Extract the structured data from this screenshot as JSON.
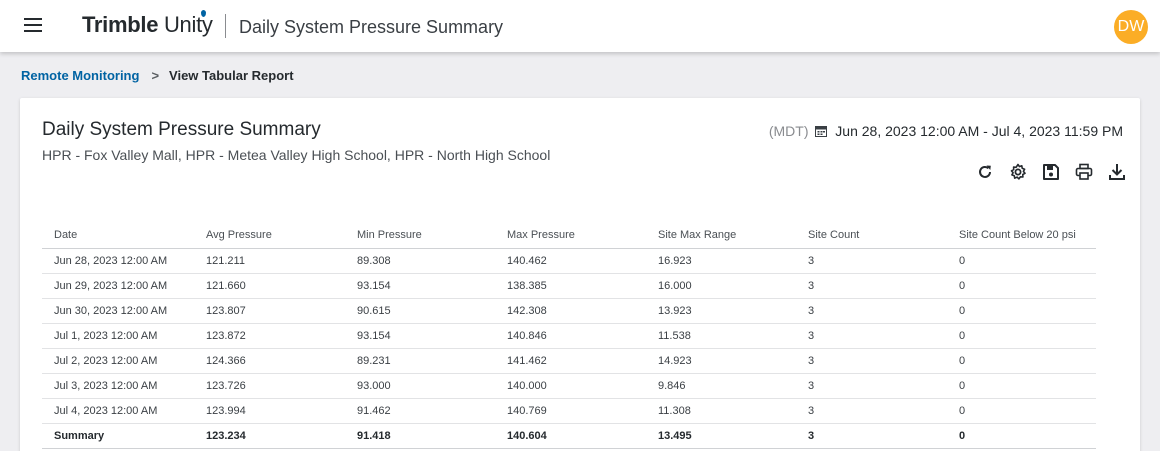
{
  "header": {
    "brand_bold": "Trimble",
    "brand_light": "Unity",
    "app_title": "Daily System Pressure Summary",
    "avatar_initials": "DW",
    "avatar_color": "#fbad26"
  },
  "breadcrumb": {
    "parent": "Remote Monitoring",
    "separator": ">",
    "current": "View Tabular Report"
  },
  "report": {
    "title": "Daily System Pressure Summary",
    "sites": "HPR - Fox Valley Mall, HPR - Metea Valley High School, HPR - North High School",
    "timezone": "(MDT)",
    "date_range": "Jun 28, 2023 12:00 AM - Jul 4, 2023 11:59 PM",
    "toolbar_icons": [
      "refresh-icon",
      "settings-icon",
      "save-icon",
      "print-icon",
      "download-icon"
    ]
  },
  "table": {
    "columns": [
      "Date",
      "Avg Pressure",
      "Min Pressure",
      "Max Pressure",
      "Site Max Range",
      "Site Count",
      "Site Count Below 20 psi"
    ],
    "rows": [
      [
        "Jun 28, 2023 12:00 AM",
        "121.211",
        "89.308",
        "140.462",
        "16.923",
        "3",
        "0"
      ],
      [
        "Jun 29, 2023 12:00 AM",
        "121.660",
        "93.154",
        "138.385",
        "16.000",
        "3",
        "0"
      ],
      [
        "Jun 30, 2023 12:00 AM",
        "123.807",
        "90.615",
        "142.308",
        "13.923",
        "3",
        "0"
      ],
      [
        "Jul 1, 2023 12:00 AM",
        "123.872",
        "93.154",
        "140.846",
        "11.538",
        "3",
        "0"
      ],
      [
        "Jul 2, 2023 12:00 AM",
        "124.366",
        "89.231",
        "141.462",
        "14.923",
        "3",
        "0"
      ],
      [
        "Jul 3, 2023 12:00 AM",
        "123.726",
        "93.000",
        "140.000",
        "9.846",
        "3",
        "0"
      ],
      [
        "Jul 4, 2023 12:00 AM",
        "123.994",
        "91.462",
        "140.769",
        "11.308",
        "3",
        "0"
      ]
    ],
    "summary": [
      "Summary",
      "123.234",
      "91.418",
      "140.604",
      "13.495",
      "3",
      "0"
    ]
  },
  "colors": {
    "link": "#0063a3",
    "text": "#252a2e",
    "background": "#eeeef1"
  }
}
